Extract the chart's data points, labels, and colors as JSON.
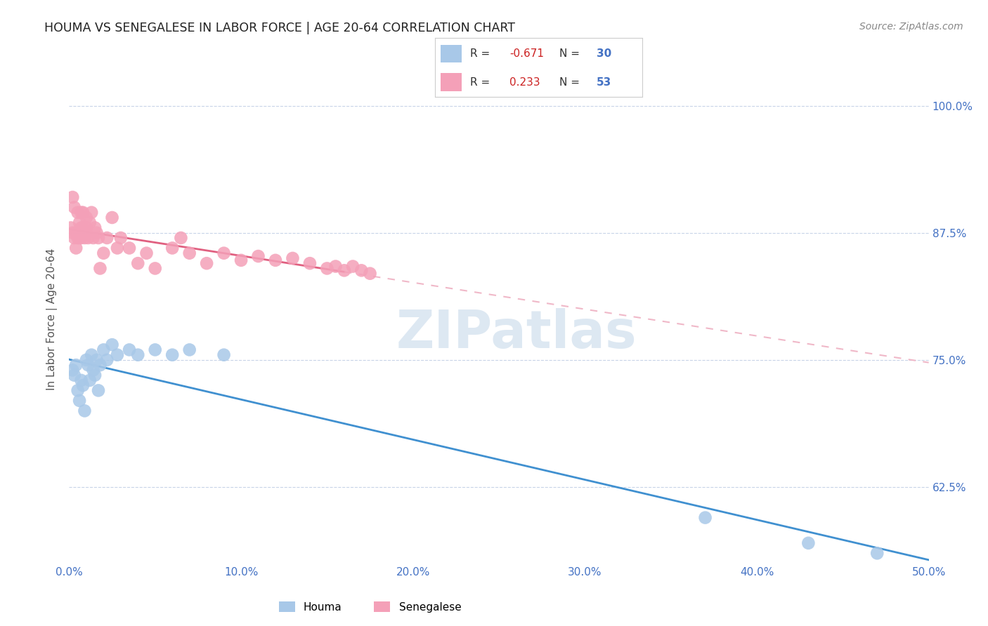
{
  "title": "HOUMA VS SENEGALESE IN LABOR FORCE | AGE 20-64 CORRELATION CHART",
  "source": "Source: ZipAtlas.com",
  "ylabel": "In Labor Force | Age 20-64",
  "xlim": [
    0.0,
    0.5
  ],
  "ylim": [
    0.55,
    1.03
  ],
  "xticks": [
    0.0,
    0.1,
    0.2,
    0.3,
    0.4,
    0.5
  ],
  "xticklabels": [
    "0.0%",
    "10.0%",
    "20.0%",
    "30.0%",
    "40.0%",
    "50.0%"
  ],
  "yticks": [
    0.625,
    0.75,
    0.875,
    1.0
  ],
  "yticklabels": [
    "62.5%",
    "75.0%",
    "87.5%",
    "100.0%"
  ],
  "houma_color": "#a8c8e8",
  "senegalese_color": "#f4a0b8",
  "houma_line_color": "#4090d0",
  "senegalese_line_color": "#e06080",
  "senegalese_dashed_color": "#f0b8c8",
  "grid_color": "#c8d4e8",
  "background_color": "#ffffff",
  "watermark_color": "#dde8f2",
  "houma_x": [
    0.002,
    0.003,
    0.004,
    0.005,
    0.006,
    0.007,
    0.008,
    0.009,
    0.01,
    0.011,
    0.012,
    0.013,
    0.014,
    0.015,
    0.016,
    0.017,
    0.018,
    0.02,
    0.022,
    0.025,
    0.028,
    0.035,
    0.04,
    0.05,
    0.06,
    0.07,
    0.09,
    0.37,
    0.43,
    0.47
  ],
  "houma_y": [
    0.74,
    0.735,
    0.745,
    0.72,
    0.71,
    0.73,
    0.725,
    0.7,
    0.75,
    0.745,
    0.73,
    0.755,
    0.74,
    0.735,
    0.75,
    0.72,
    0.745,
    0.76,
    0.75,
    0.765,
    0.755,
    0.76,
    0.755,
    0.76,
    0.755,
    0.76,
    0.755,
    0.595,
    0.57,
    0.56
  ],
  "senegalese_x": [
    0.001,
    0.002,
    0.002,
    0.003,
    0.003,
    0.004,
    0.004,
    0.005,
    0.005,
    0.006,
    0.006,
    0.007,
    0.007,
    0.007,
    0.008,
    0.008,
    0.009,
    0.009,
    0.01,
    0.01,
    0.011,
    0.012,
    0.013,
    0.014,
    0.015,
    0.016,
    0.017,
    0.018,
    0.02,
    0.022,
    0.025,
    0.028,
    0.03,
    0.035,
    0.04,
    0.045,
    0.05,
    0.06,
    0.065,
    0.07,
    0.08,
    0.09,
    0.1,
    0.11,
    0.12,
    0.13,
    0.14,
    0.15,
    0.155,
    0.16,
    0.165,
    0.17,
    0.175
  ],
  "senegalese_y": [
    0.88,
    0.875,
    0.91,
    0.87,
    0.9,
    0.875,
    0.86,
    0.895,
    0.87,
    0.885,
    0.87,
    0.88,
    0.895,
    0.87,
    0.88,
    0.895,
    0.875,
    0.87,
    0.88,
    0.89,
    0.87,
    0.885,
    0.895,
    0.87,
    0.88,
    0.875,
    0.87,
    0.84,
    0.855,
    0.87,
    0.89,
    0.86,
    0.87,
    0.86,
    0.845,
    0.855,
    0.84,
    0.86,
    0.87,
    0.855,
    0.845,
    0.855,
    0.848,
    0.852,
    0.848,
    0.85,
    0.845,
    0.84,
    0.842,
    0.838,
    0.842,
    0.838,
    0.835
  ]
}
